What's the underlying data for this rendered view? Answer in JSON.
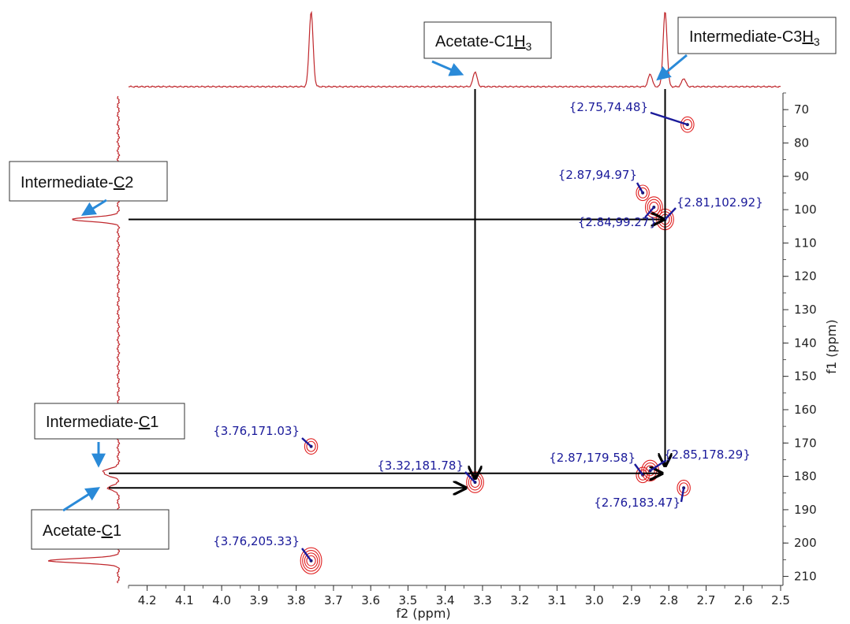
{
  "colors": {
    "spectrum": "#c0282d",
    "contour": "#e02020",
    "peak_label": "#1a1a9a",
    "callout_arrow": "#2a8ad8",
    "correlation_arrow": "#000000"
  },
  "chart_data": {
    "type": "scatter",
    "subtype": "2D NMR HMBC contour spectrum",
    "xlabel": "f2 (ppm)",
    "ylabel": "f1 (ppm)",
    "xlim": [
      4.25,
      2.5
    ],
    "ylim": [
      65,
      212
    ],
    "x_reversed": true,
    "y_reversed": true,
    "xticks": [
      4.2,
      4.1,
      4.0,
      3.9,
      3.8,
      3.7,
      3.6,
      3.5,
      3.4,
      3.3,
      3.2,
      3.1,
      3.0,
      2.9,
      2.8,
      2.7,
      2.6,
      2.5
    ],
    "xtick_labels": [
      "4.2",
      "4.1",
      "4.0",
      "3.9",
      "3.8",
      "3.7",
      "3.6",
      "3.5",
      "3.4",
      "3.3",
      "3.2",
      "3.1",
      "3.0",
      "2.9",
      "2.8",
      "2.7",
      "2.6",
      "2.5"
    ],
    "yticks": [
      70,
      80,
      90,
      100,
      110,
      120,
      130,
      140,
      150,
      160,
      170,
      180,
      190,
      200,
      210
    ],
    "ytick_labels": [
      "70",
      "80",
      "90",
      "100",
      "110",
      "120",
      "130",
      "140",
      "150",
      "160",
      "170",
      "180",
      "190",
      "200",
      "210"
    ],
    "peaks": [
      {
        "x": 2.75,
        "y": 74.48,
        "label": "{2.75,74.48}"
      },
      {
        "x": 2.87,
        "y": 94.97,
        "label": "{2.87,94.97}"
      },
      {
        "x": 2.81,
        "y": 102.92,
        "label": "{2.81,102.92}"
      },
      {
        "x": 2.84,
        "y": 99.27,
        "label": "{2.84,99.27}"
      },
      {
        "x": 3.76,
        "y": 171.03,
        "label": "{3.76,171.03}"
      },
      {
        "x": 3.32,
        "y": 181.78,
        "label": "{3.32,181.78}"
      },
      {
        "x": 2.87,
        "y": 179.58,
        "label": "{2.87,179.58}"
      },
      {
        "x": 2.85,
        "y": 178.29,
        "label": "{2.85,178.29}"
      },
      {
        "x": 2.76,
        "y": 183.47,
        "label": "{2.76,183.47}"
      },
      {
        "x": 3.76,
        "y": 205.33,
        "label": "{3.76,205.33}"
      }
    ],
    "f2_projection_peaks": [
      {
        "x": 3.76,
        "intensity": 1.0
      },
      {
        "x": 3.32,
        "intensity": 0.2
      },
      {
        "x": 2.85,
        "intensity": 0.17
      },
      {
        "x": 2.81,
        "intensity": 1.0
      },
      {
        "x": 2.76,
        "intensity": 0.11
      }
    ],
    "f1_projection_peaks": [
      {
        "y": 102.9,
        "intensity": 0.5
      },
      {
        "y": 178.3,
        "intensity": 0.15
      },
      {
        "y": 179.6,
        "intensity": 0.1
      },
      {
        "y": 183.5,
        "intensity": 0.12
      },
      {
        "y": 205.3,
        "intensity": 0.75
      }
    ],
    "annotations": [
      {
        "text": "Acetate-C1",
        "sub_underlined": "H",
        "subscript": "3",
        "target": "f2-3.32"
      },
      {
        "text": "Intermediate-C3",
        "sub_underlined": "H",
        "subscript": "3",
        "target": "f2-2.81"
      },
      {
        "text": "Intermediate-",
        "sub_underlined": "C",
        "subscript": "2",
        "target": "f1-102.92"
      },
      {
        "text": "Intermediate-",
        "sub_underlined": "C",
        "subscript": "1",
        "target": "f1-178.29"
      },
      {
        "text": "Acetate-",
        "sub_underlined": "C",
        "subscript": "1",
        "target": "f1-181.78"
      }
    ]
  }
}
